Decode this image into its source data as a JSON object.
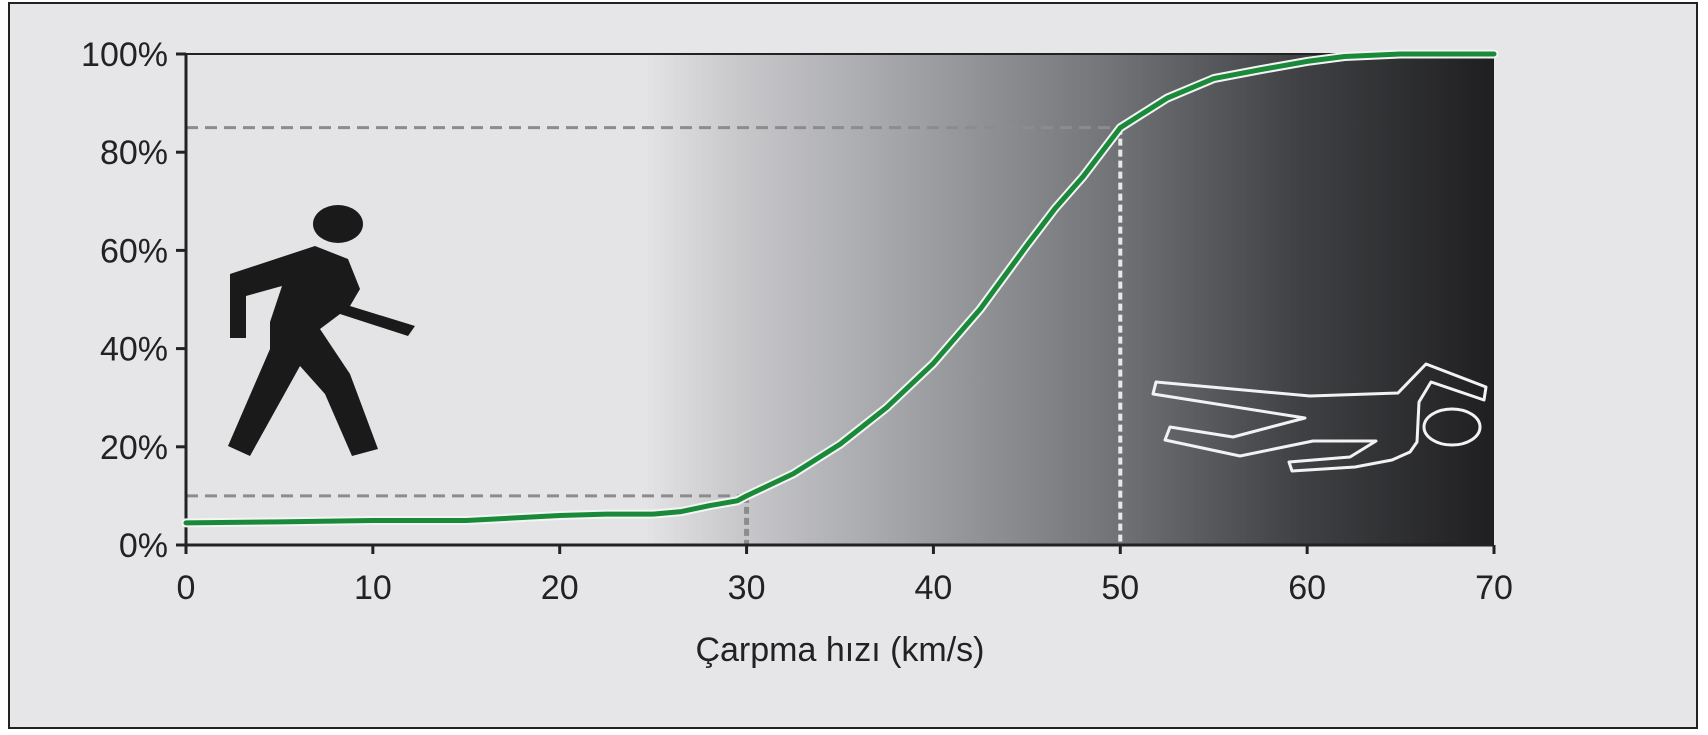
{
  "chart_data": {
    "type": "line",
    "title": "",
    "xlabel": "Çarpma hızı (km/s)",
    "ylabel": "",
    "xlim": [
      0,
      70
    ],
    "ylim": [
      0,
      100
    ],
    "x_ticks": [
      "0",
      "10",
      "20",
      "30",
      "40",
      "50",
      "60",
      "70"
    ],
    "y_ticks": [
      "0%",
      "20%",
      "40%",
      "60%",
      "80%",
      "100%"
    ],
    "grid": false,
    "series": [
      {
        "x": [
          0,
          5,
          10,
          15,
          20,
          22.5,
          25,
          26.5,
          28,
          29.5,
          30,
          32.5,
          35,
          37.5,
          40,
          42.5,
          45,
          46.5,
          48,
          50,
          52.5,
          55,
          57.5,
          60,
          62,
          65,
          70
        ],
        "y": [
          4.5,
          4.7,
          5,
          5,
          6,
          6.3,
          6.3,
          6.8,
          8,
          9,
          10,
          14.5,
          20.5,
          28,
          37,
          48,
          61,
          68.5,
          75,
          85,
          91,
          95,
          96.8,
          98.5,
          99.5,
          100,
          100
        ],
        "color": "#1a8a3a"
      }
    ],
    "reference_points": [
      {
        "x": 30,
        "y": 10
      },
      {
        "x": 50,
        "y": 85
      }
    ],
    "background": "gradient light gray to black from x=27 to x=70"
  },
  "icons": {
    "left": "walking-pedestrian-icon",
    "right": "body-outline-icon"
  },
  "colors": {
    "frame_bg": "#e6e6e8",
    "line": "#1a8a3a",
    "axis": "#222222"
  }
}
